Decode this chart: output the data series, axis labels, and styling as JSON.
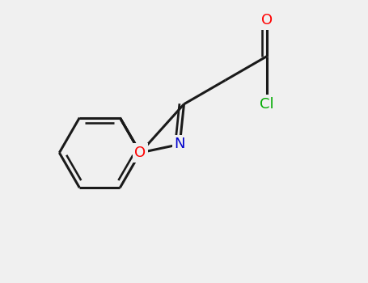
{
  "background_color": "#f0f0f0",
  "bond_color": "#1a1a1a",
  "atom_colors": {
    "O": "#ff0000",
    "N": "#0000cc",
    "Cl": "#00aa00",
    "C": "#1a1a1a"
  },
  "bond_width": 2.2,
  "figsize": [
    4.55,
    3.5
  ],
  "dpi": 100,
  "xlim": [
    -2.0,
    3.5
  ],
  "ylim": [
    -2.5,
    2.5
  ]
}
